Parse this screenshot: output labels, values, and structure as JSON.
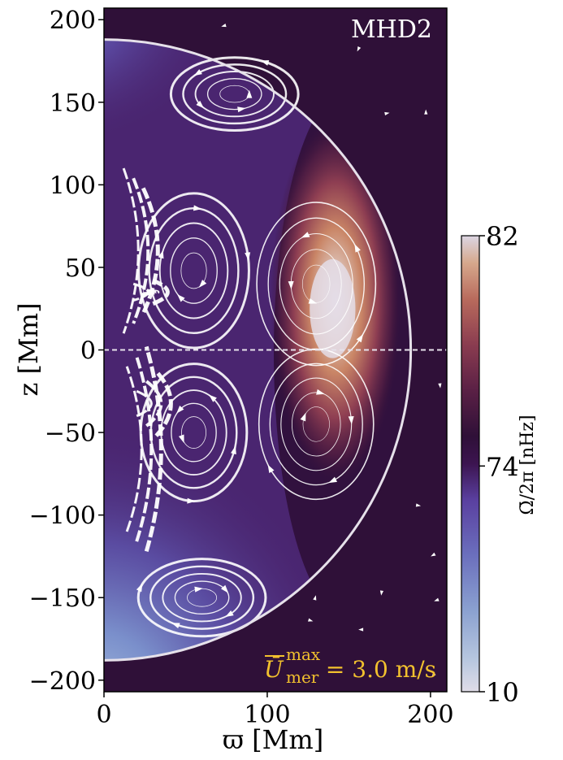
{
  "chart_data": {
    "type": "heatmap",
    "panel_label": "MHD2",
    "xlabel": "ϖ [Mm]",
    "ylabel": "z [Mm]",
    "xlim": [
      0,
      210
    ],
    "ylim": [
      -207,
      207
    ],
    "x_ticks": [
      0,
      100,
      200
    ],
    "y_ticks": [
      200,
      150,
      100,
      50,
      0,
      -50,
      -100,
      -150,
      -200
    ],
    "y_tick_labels": [
      "200",
      "150",
      "100",
      "50",
      "0",
      "−50",
      "−100",
      "−150",
      "−200"
    ],
    "boundary_radius": 188,
    "equator_line": "dashed",
    "colorbar": {
      "label": "Ω̄/2π [nHz]",
      "ticks": [
        82,
        74,
        10
      ],
      "range": [
        10,
        82
      ],
      "colors": [
        "#e0dde8",
        "#a3b5d6",
        "#6f82c0",
        "#5a4ea8",
        "#4a2570",
        "#2f1038",
        "#4a1c40",
        "#6e2d4c",
        "#9c4a52",
        "#c0775e",
        "#d6a385",
        "#dfd7e2"
      ]
    },
    "annotation": {
      "symbol": "Ū",
      "superscript": "max",
      "subscript": "mer",
      "text": " = 3.0 m/s",
      "color": "#f2c12e"
    },
    "cells": [
      {
        "name": "north-upper-cell",
        "center": [
          80,
          155
        ],
        "rx": 30,
        "ry": 17,
        "sense": "ccw"
      },
      {
        "name": "north-mid-cell",
        "center": [
          55,
          48
        ],
        "rx": 26,
        "ry": 36,
        "sense": "cw"
      },
      {
        "name": "north-outer-cell",
        "center": [
          130,
          40
        ],
        "rx": 28,
        "ry": 38,
        "sense": "ccw"
      },
      {
        "name": "south-mid-cell",
        "center": [
          55,
          -50
        ],
        "rx": 25,
        "ry": 32,
        "sense": "ccw"
      },
      {
        "name": "south-outer-cell",
        "center": [
          130,
          -45
        ],
        "rx": 27,
        "ry": 35,
        "sense": "cw"
      },
      {
        "name": "south-lower-cell",
        "center": [
          60,
          -150
        ],
        "rx": 30,
        "ry": 18,
        "sense": "cw"
      }
    ]
  }
}
